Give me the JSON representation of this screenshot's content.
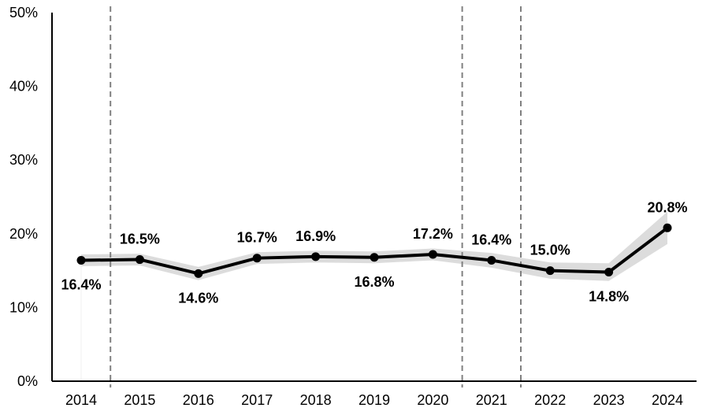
{
  "chart_data": {
    "type": "line",
    "title": "",
    "xlabel": "",
    "ylabel": "",
    "x": [
      "2014",
      "2015",
      "2016",
      "2017",
      "2018",
      "2019",
      "2020",
      "2021",
      "2022",
      "2023",
      "2024"
    ],
    "series": [
      {
        "values": [
          16.4,
          16.5,
          14.6,
          16.7,
          16.9,
          16.8,
          17.2,
          16.4,
          15.0,
          14.8,
          20.8
        ],
        "labels": [
          "16.4%",
          "16.5%",
          "14.6%",
          "16.7%",
          "16.9%",
          "16.8%",
          "17.2%",
          "16.4%",
          "15.0%",
          "14.8%",
          "20.8%"
        ],
        "ci_lower": [
          15.6,
          15.7,
          13.7,
          15.9,
          16.1,
          16.0,
          16.4,
          15.4,
          13.9,
          13.6,
          18.6
        ],
        "ci_upper": [
          17.2,
          17.3,
          15.5,
          17.5,
          17.7,
          17.6,
          18.0,
          17.4,
          16.1,
          16.0,
          23.0
        ]
      }
    ],
    "ylim": [
      0,
      50
    ],
    "yticks": [
      0,
      10,
      20,
      30,
      40,
      50
    ],
    "ytick_labels": [
      "0%",
      "10%",
      "20%",
      "30%",
      "40%",
      "50%"
    ],
    "vertical_dashed_lines_between": [
      [
        "2014",
        "2015"
      ],
      [
        "2020",
        "2021"
      ],
      [
        "2021",
        "2022"
      ]
    ],
    "grid": false,
    "legend": "none",
    "colors": {
      "line": "#000000",
      "band": "#dcdcdc",
      "dashed": "#808080",
      "axis": "#000000"
    }
  }
}
